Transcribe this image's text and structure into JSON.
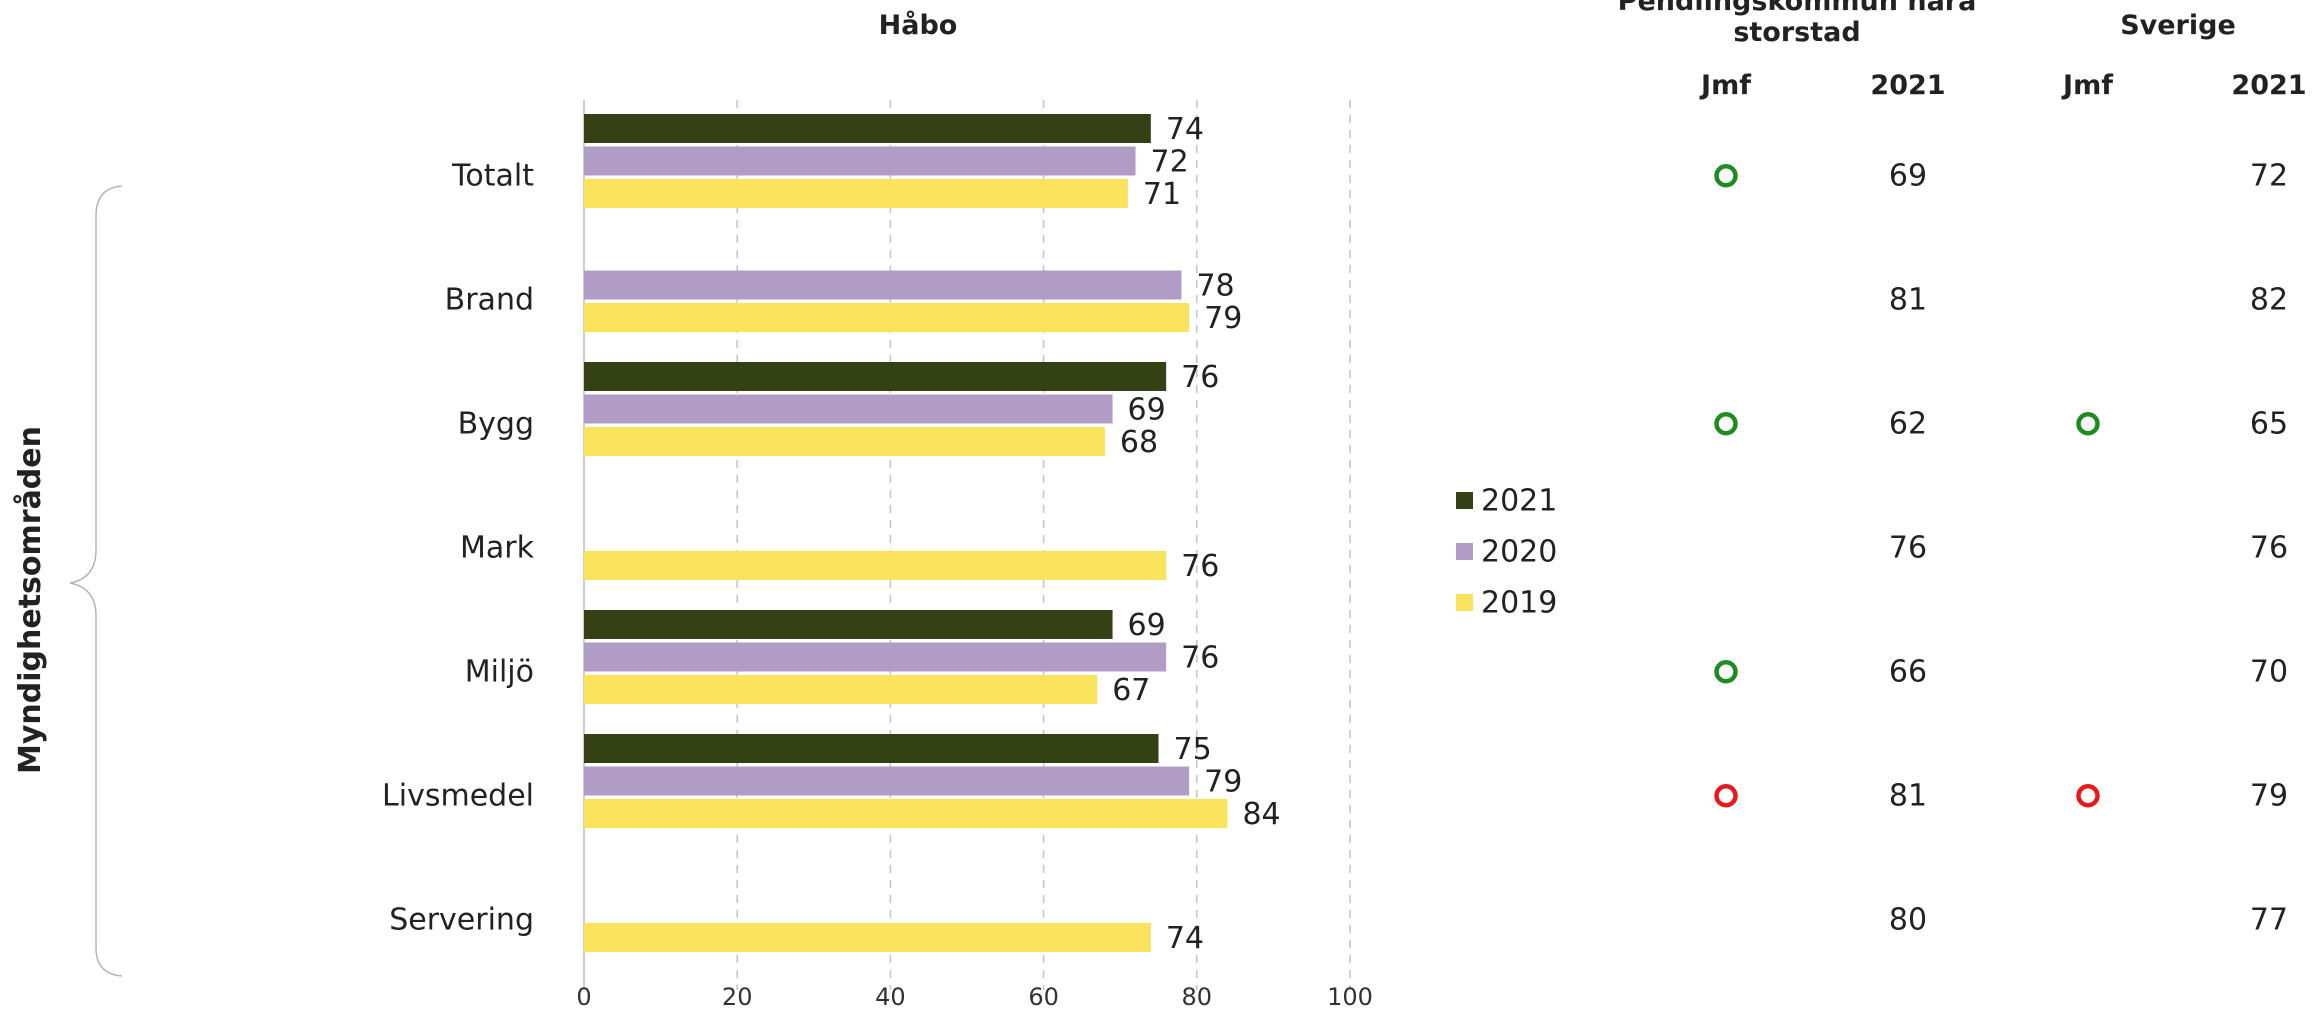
{
  "chart_data": {
    "type": "bar",
    "orientation": "horizontal",
    "title": "Håbo",
    "group_label": "Myndighetsområden",
    "categories": [
      "Totalt",
      "Brand",
      "Bygg",
      "Mark",
      "Miljö",
      "Livsmedel",
      "Servering"
    ],
    "series": [
      {
        "name": "2021",
        "color": "#334115",
        "values": [
          74,
          null,
          76,
          null,
          69,
          75,
          null
        ]
      },
      {
        "name": "2020",
        "color": "#b09cc4",
        "values": [
          72,
          78,
          69,
          null,
          76,
          79,
          null
        ]
      },
      {
        "name": "2019",
        "color": "#f9e25c",
        "values": [
          71,
          79,
          68,
          76,
          67,
          84,
          74
        ]
      }
    ],
    "xlim": [
      0,
      100
    ],
    "xticks": [
      0,
      20,
      40,
      60,
      80,
      100
    ],
    "grid": "vertical-dashed",
    "legend_position": "right",
    "comparison_tables": [
      {
        "title": "Pendlingskommun nära storstad",
        "title_lines": [
          "Pendlingskommun nära",
          "storstad"
        ],
        "jmf_header": "Jmf",
        "year_header": "2021",
        "values": [
          69,
          81,
          62,
          76,
          66,
          81,
          80
        ],
        "jmf": [
          "green",
          null,
          "green",
          null,
          "green",
          "red",
          null
        ]
      },
      {
        "title": "Sverige",
        "title_lines": [
          "Sverige"
        ],
        "jmf_header": "Jmf",
        "year_header": "2021",
        "values": [
          72,
          82,
          65,
          76,
          70,
          79,
          77
        ],
        "jmf": [
          null,
          null,
          "green",
          null,
          null,
          "red",
          null
        ]
      }
    ],
    "indicator_colors": {
      "green": "#1f8a1f",
      "red": "#e8191c"
    }
  }
}
